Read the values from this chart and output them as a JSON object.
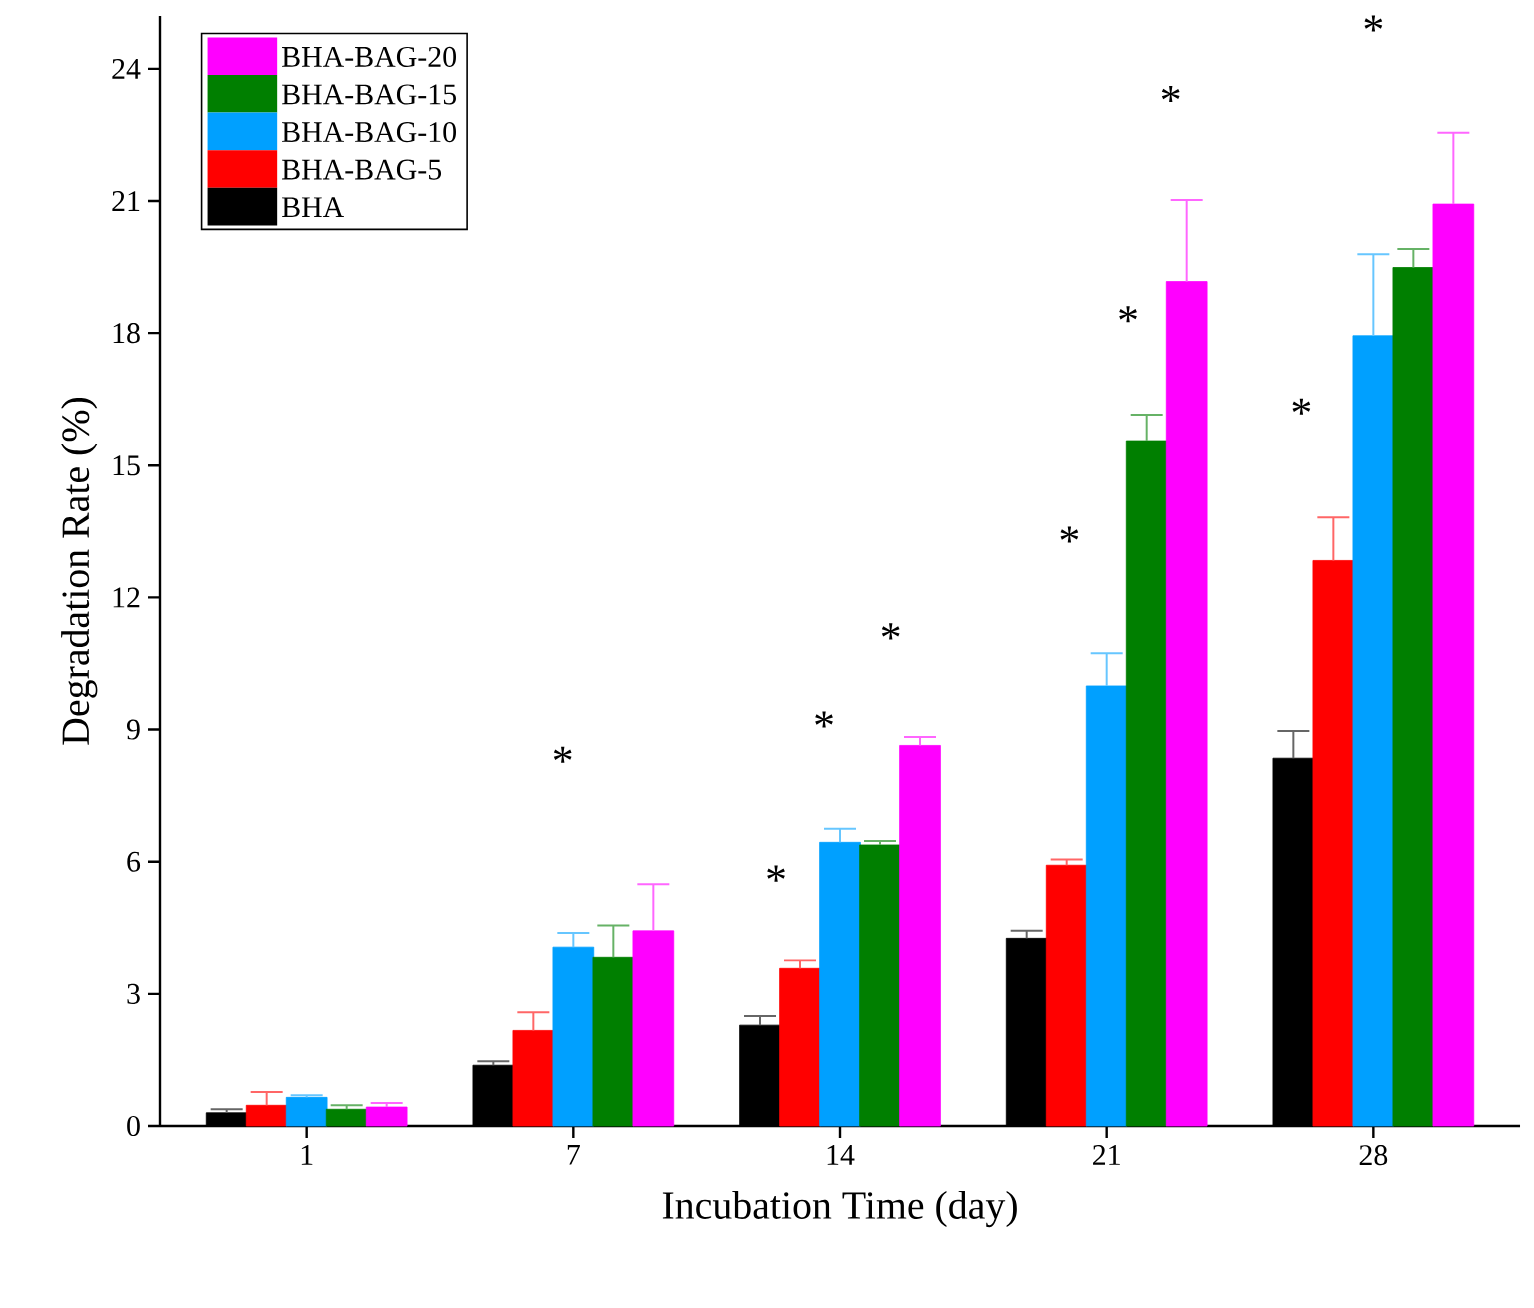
{
  "chart_data": {
    "type": "bar",
    "xlabel": "Incubation Time (day)",
    "ylabel": "Degradation Rate (%)",
    "categories": [
      "1",
      "7",
      "14",
      "21",
      "28"
    ],
    "series": [
      {
        "name": "BHA",
        "color": "#000000",
        "values": [
          0.3,
          1.38,
          2.29,
          4.26,
          8.35
        ],
        "errors": [
          0.08,
          0.09,
          0.21,
          0.17,
          0.62
        ]
      },
      {
        "name": "BHA-BAG-5",
        "color": "#ff0000",
        "values": [
          0.47,
          2.17,
          3.58,
          5.92,
          12.84
        ],
        "errors": [
          0.3,
          0.41,
          0.18,
          0.13,
          0.98
        ]
      },
      {
        "name": "BHA-BAG-10",
        "color": "#00a0ff",
        "values": [
          0.65,
          4.06,
          6.44,
          9.99,
          17.94
        ],
        "errors": [
          0.05,
          0.32,
          0.31,
          0.74,
          1.85
        ]
      },
      {
        "name": "BHA-BAG-15",
        "color": "#007f00",
        "values": [
          0.38,
          3.83,
          6.38,
          15.55,
          19.49
        ],
        "errors": [
          0.09,
          0.72,
          0.09,
          0.59,
          0.42
        ]
      },
      {
        "name": "BHA-BAG-20",
        "color": "#ff00ff",
        "values": [
          0.43,
          4.43,
          8.64,
          19.17,
          20.93
        ],
        "errors": [
          0.09,
          1.06,
          0.19,
          1.85,
          1.62
        ]
      }
    ],
    "ylim": [
      0,
      25.2
    ],
    "yticks": [
      0,
      3,
      6,
      9,
      12,
      15,
      18,
      21,
      24
    ],
    "legend": "top left",
    "grid": false,
    "annotations": [
      "*",
      "*",
      "*",
      "*",
      "*",
      "*",
      "*",
      "*",
      "*"
    ]
  }
}
